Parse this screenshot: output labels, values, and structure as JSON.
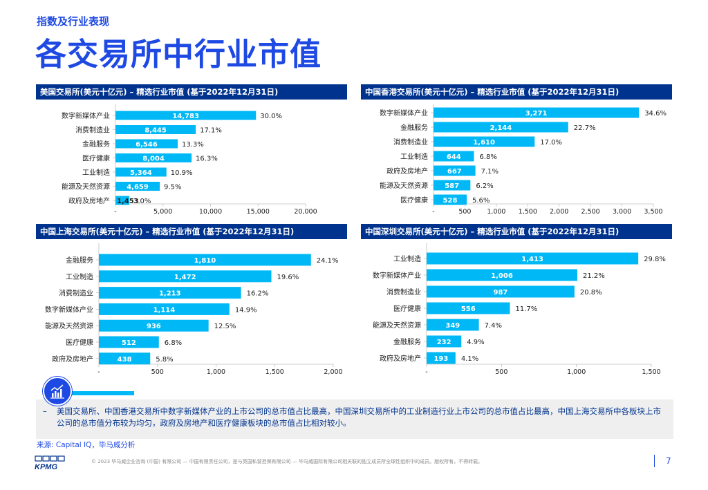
{
  "section_label": "指数及行业表现",
  "page_title": "各交易所中行业市值",
  "colors": {
    "bar": "#00B8F5",
    "header": "#00338D",
    "accent": "#1E49E2"
  },
  "chart_data": [
    {
      "type": "bar",
      "orientation": "horizontal",
      "title": "美国交易所(美元十亿元) – 精选行业市值 (基于2022年12月31日)",
      "categories": [
        "数字新媒体产业",
        "消费制造业",
        "金融服务",
        "医疗健康",
        "工业制造",
        "能源及天然资源",
        "政府及房地产"
      ],
      "values": [
        14783,
        8445,
        6546,
        8004,
        5364,
        4659,
        1453
      ],
      "value_labels": [
        "14,783",
        "8,445",
        "6,546",
        "8,004",
        "5,364",
        "4,659",
        "1,453"
      ],
      "percent_labels": [
        "30.0%",
        "17.1%",
        "13.3%",
        "16.3%",
        "10.9%",
        "9.5%",
        "3.0%"
      ],
      "xlim": [
        0,
        20000
      ],
      "xticks": [
        "-",
        "5,000",
        "10,000",
        "15,000",
        "20,000"
      ]
    },
    {
      "type": "bar",
      "orientation": "horizontal",
      "title": "中国香港交易所(美元十亿元) – 精选行业市值 (基于2022年12月31日)",
      "categories": [
        "数字新媒体产业",
        "金融服务",
        "消费制造业",
        "工业制造",
        "政府及房地产",
        "能源及天然资源",
        "医疗健康"
      ],
      "values": [
        3271,
        2144,
        1610,
        644,
        667,
        587,
        528
      ],
      "value_labels": [
        "3,271",
        "2,144",
        "1,610",
        "644",
        "667",
        "587",
        "528"
      ],
      "percent_labels": [
        "34.6%",
        "22.7%",
        "17.0%",
        "6.8%",
        "7.1%",
        "6.2%",
        "5.6%"
      ],
      "xlim": [
        0,
        3500
      ],
      "xticks": [
        "-",
        "500",
        "1,000",
        "1,500",
        "2,000",
        "2,500",
        "3,000",
        "3,500"
      ]
    },
    {
      "type": "bar",
      "orientation": "horizontal",
      "title": "中国上海交易所(美元十亿元) – 精选行业市值 (基于2022年12月31日)",
      "categories": [
        "金融服务",
        "工业制造",
        "消费制造业",
        "数字新媒体产业",
        "能源及天然资源",
        "医疗健康",
        "政府及房地产"
      ],
      "values": [
        1810,
        1472,
        1213,
        1114,
        936,
        512,
        438
      ],
      "value_labels": [
        "1,810",
        "1,472",
        "1,213",
        "1,114",
        "936",
        "512",
        "438"
      ],
      "percent_labels": [
        "24.1%",
        "19.6%",
        "16.2%",
        "14.9%",
        "12.5%",
        "6.8%",
        "5.8%"
      ],
      "xlim": [
        0,
        2000
      ],
      "xticks": [
        "-",
        "500",
        "1,000",
        "1,500",
        "2,000"
      ]
    },
    {
      "type": "bar",
      "orientation": "horizontal",
      "title": "中国深圳交易所(美元十亿元) – 精选行业市值 (基于2022年12月31日)",
      "categories": [
        "工业制造",
        "数字新媒体产业",
        "消费制造业",
        "医疗健康",
        "能源及天然资源",
        "金融服务",
        "政府及房地产"
      ],
      "values": [
        1413,
        1006,
        987,
        556,
        349,
        232,
        193
      ],
      "value_labels": [
        "1,413",
        "1,006",
        "987",
        "556",
        "349",
        "232",
        "193"
      ],
      "percent_labels": [
        "29.8%",
        "21.2%",
        "20.8%",
        "11.7%",
        "7.4%",
        "4.9%",
        "4.1%"
      ],
      "xlim": [
        0,
        1500
      ],
      "xticks": [
        "-",
        "500",
        "1,000",
        "1,500"
      ]
    }
  ],
  "note": {
    "dash": "–",
    "text": "美国交易所、中国香港交易所中数字新媒体产业的上市公司的总市值占比最高，中国深圳交易所中的工业制造行业上市公司的总市值占比最高，中国上海交易所中各板块上市公司的总市值分布较为均匀，政府及房地产和医疗健康板块的总市值占比相对较小。"
  },
  "source": "来源: Capital IQ，毕马威分析",
  "copyright": "© 2023 毕马威企业咨询 (中国) 有限公司 — 中国有限责任公司，是与英国私营担保有限公司 — 毕马威国际有限公司相关联的独立成员所全球性组织中的成员。版权所有，不得转载。",
  "page_number": "7",
  "logo_text": "KPMG"
}
